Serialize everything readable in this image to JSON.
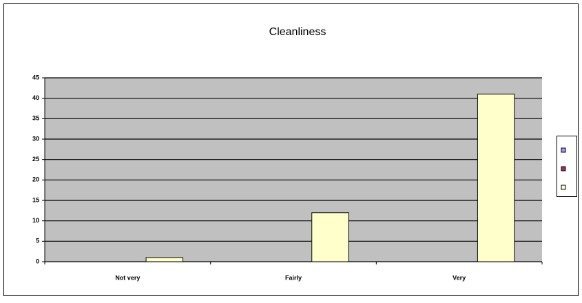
{
  "chart_data": {
    "type": "bar",
    "title": "Cleanliness",
    "categories": [
      "Not very",
      "Fairly",
      "Very"
    ],
    "series": [
      {
        "color": "#9999ff",
        "values": [
          0,
          0,
          0
        ]
      },
      {
        "color": "#993366",
        "values": [
          0,
          0,
          0
        ]
      },
      {
        "color": "#ffffcc",
        "values": [
          1,
          12,
          41
        ]
      }
    ],
    "ylim": [
      0,
      45
    ],
    "yticks": [
      0,
      5,
      10,
      15,
      20,
      25,
      30,
      35,
      40,
      45
    ],
    "grid": true,
    "legend": "right",
    "plot_background": "#c0c0c0"
  }
}
